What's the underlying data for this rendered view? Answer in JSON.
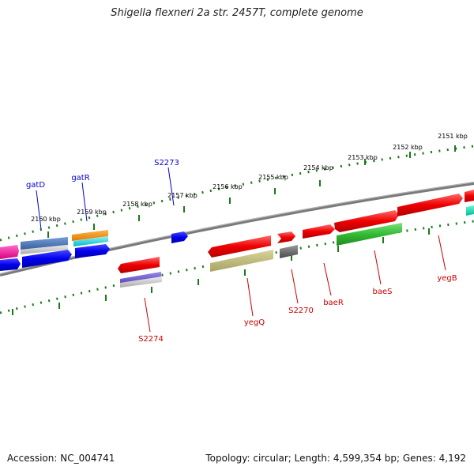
{
  "title": "Shigella flexneri 2a str. 2457T, complete genome",
  "footer": {
    "accession": "Accession: NC_004741",
    "summary": "Topology: circular; Length: 4,599,354 bp; Genes: 4,192"
  },
  "ticks": [
    "2151 kbp",
    "2152 kbp",
    "2153 kbp",
    "2154 kbp",
    "2155 kbp",
    "2156 kbp",
    "2157 kbp",
    "2158 kbp",
    "2159 kbp",
    "2160 kbp"
  ],
  "genes": {
    "gatD": "gatD",
    "gatR": "gatR",
    "S2273": "S2273",
    "S2274": "S2274",
    "yegQ": "yegQ",
    "S2270": "S2270",
    "baeR": "baeR",
    "baeS": "baeS",
    "yegB": "yegB"
  },
  "colors": {
    "forward_label": "#0000cc",
    "reverse_label": "#cc0000",
    "tick": "#1a7a1a",
    "backbone": "#777777"
  }
}
